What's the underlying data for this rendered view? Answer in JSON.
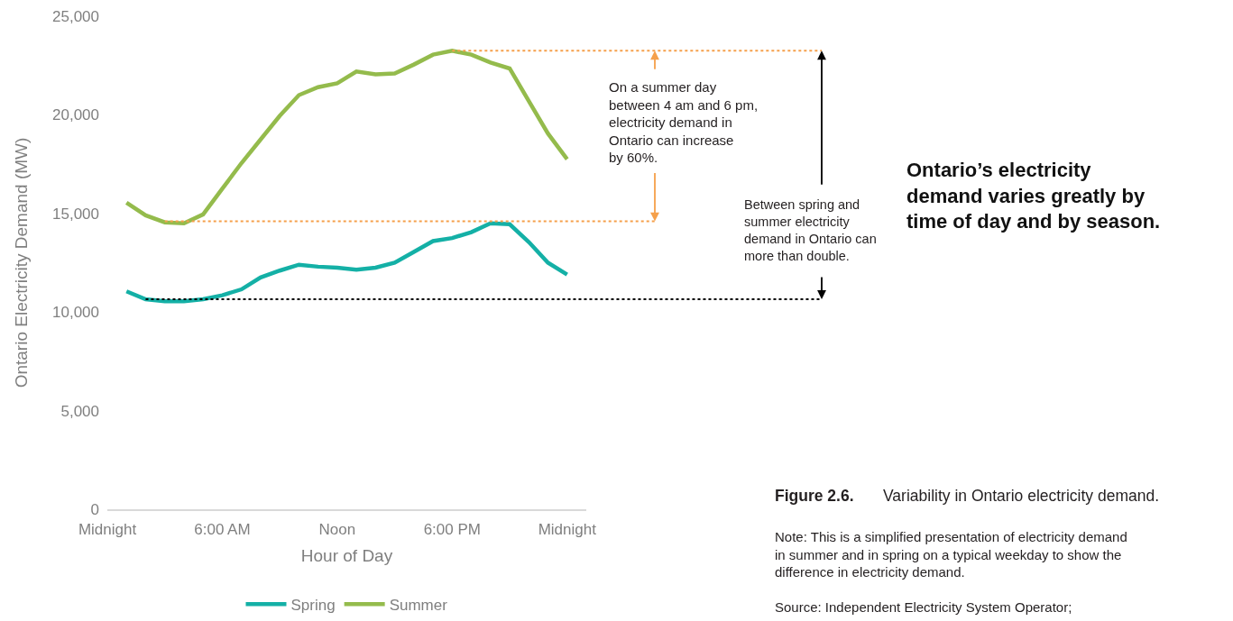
{
  "chart_data": {
    "type": "line",
    "title": "Ontario’s electricity demand varies greatly by time of day and by season.",
    "xlabel": "Hour of Day",
    "ylabel": "Ontario Electricity Demand (MW)",
    "x": [
      1,
      2,
      3,
      4,
      5,
      6,
      7,
      8,
      9,
      10,
      11,
      12,
      13,
      14,
      15,
      16,
      17,
      18,
      19,
      20,
      21,
      22,
      23,
      24
    ],
    "xlim": [
      0,
      25
    ],
    "xticks": [
      {
        "value": 0,
        "label": "Midnight"
      },
      {
        "value": 6,
        "label": "6:00 AM"
      },
      {
        "value": 12,
        "label": "Noon"
      },
      {
        "value": 18,
        "label": "6:00 PM"
      },
      {
        "value": 24,
        "label": "Midnight"
      }
    ],
    "ylim": [
      0,
      25000
    ],
    "yticks": [
      0,
      {
        "value": 5000,
        "label": "5,000"
      },
      {
        "value": 10000,
        "label": "10,000"
      },
      {
        "value": 15000,
        "label": "15,000"
      },
      {
        "value": 20000,
        "label": "20,000"
      },
      {
        "value": 25000,
        "label": "25,000"
      }
    ],
    "series": [
      {
        "name": "Spring",
        "color": "#14b0a6",
        "values": [
          11050,
          10650,
          10550,
          10550,
          10650,
          10850,
          11150,
          11750,
          12100,
          12400,
          12300,
          12250,
          12150,
          12250,
          12500,
          13050,
          13600,
          13750,
          14050,
          14500,
          14450,
          13550,
          12500,
          11900
        ]
      },
      {
        "name": "Summer",
        "color": "#94bb4c",
        "values": [
          15550,
          14900,
          14550,
          14500,
          14950,
          16250,
          17550,
          18750,
          19950,
          21000,
          21400,
          21600,
          22200,
          22050,
          22100,
          22550,
          23050,
          23250,
          23050,
          22650,
          22350,
          20700,
          19050,
          17750
        ]
      }
    ],
    "ref_lines": [
      {
        "axis": "y",
        "value": 14600,
        "color": "#f5a04b",
        "line_style": "dotted"
      },
      {
        "axis": "y",
        "value": 23250,
        "color": "#f5a04b",
        "line_style": "dotted"
      },
      {
        "axis": "y",
        "value": 10650,
        "color": "#000000",
        "line_style": "dotted"
      }
    ],
    "grid": false,
    "legend": "bottom",
    "annotations": [
      "On a summer day between 4 am and 6 pm, electricity demand in Ontario can increase by 60%.",
      "Between spring and summer electricity demand in Ontario can more than double.",
      "Figure 2.6.",
      "Variability in Ontario electricity demand.",
      "Note: This is a simplified presentation of electricity demand in summer and in spring on a typical weekday to show the difference in electricity demand.",
      "Source: Independent Electricity System Operator;"
    ]
  }
}
